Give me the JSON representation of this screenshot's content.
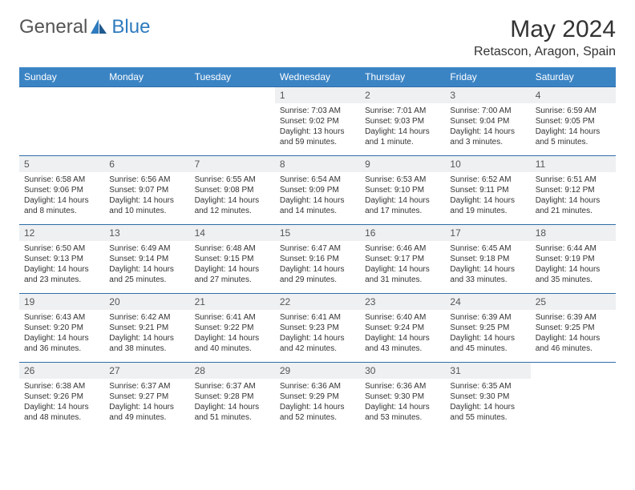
{
  "brand": {
    "part1": "General",
    "part2": "Blue"
  },
  "title": "May 2024",
  "location": "Retascon, Aragon, Spain",
  "colors": {
    "header_bg": "#3b84c4",
    "header_text": "#ffffff",
    "row_border": "#2f6ea8",
    "daynum_bg": "#eef0f2",
    "body_text": "#333333",
    "brand_gray": "#555555",
    "brand_blue": "#2f7bbf"
  },
  "day_headers": [
    "Sunday",
    "Monday",
    "Tuesday",
    "Wednesday",
    "Thursday",
    "Friday",
    "Saturday"
  ],
  "weeks": [
    [
      {
        "n": "",
        "sr": "",
        "ss": "",
        "dl": ""
      },
      {
        "n": "",
        "sr": "",
        "ss": "",
        "dl": ""
      },
      {
        "n": "",
        "sr": "",
        "ss": "",
        "dl": ""
      },
      {
        "n": "1",
        "sr": "Sunrise: 7:03 AM",
        "ss": "Sunset: 9:02 PM",
        "dl": "Daylight: 13 hours and 59 minutes."
      },
      {
        "n": "2",
        "sr": "Sunrise: 7:01 AM",
        "ss": "Sunset: 9:03 PM",
        "dl": "Daylight: 14 hours and 1 minute."
      },
      {
        "n": "3",
        "sr": "Sunrise: 7:00 AM",
        "ss": "Sunset: 9:04 PM",
        "dl": "Daylight: 14 hours and 3 minutes."
      },
      {
        "n": "4",
        "sr": "Sunrise: 6:59 AM",
        "ss": "Sunset: 9:05 PM",
        "dl": "Daylight: 14 hours and 5 minutes."
      }
    ],
    [
      {
        "n": "5",
        "sr": "Sunrise: 6:58 AM",
        "ss": "Sunset: 9:06 PM",
        "dl": "Daylight: 14 hours and 8 minutes."
      },
      {
        "n": "6",
        "sr": "Sunrise: 6:56 AM",
        "ss": "Sunset: 9:07 PM",
        "dl": "Daylight: 14 hours and 10 minutes."
      },
      {
        "n": "7",
        "sr": "Sunrise: 6:55 AM",
        "ss": "Sunset: 9:08 PM",
        "dl": "Daylight: 14 hours and 12 minutes."
      },
      {
        "n": "8",
        "sr": "Sunrise: 6:54 AM",
        "ss": "Sunset: 9:09 PM",
        "dl": "Daylight: 14 hours and 14 minutes."
      },
      {
        "n": "9",
        "sr": "Sunrise: 6:53 AM",
        "ss": "Sunset: 9:10 PM",
        "dl": "Daylight: 14 hours and 17 minutes."
      },
      {
        "n": "10",
        "sr": "Sunrise: 6:52 AM",
        "ss": "Sunset: 9:11 PM",
        "dl": "Daylight: 14 hours and 19 minutes."
      },
      {
        "n": "11",
        "sr": "Sunrise: 6:51 AM",
        "ss": "Sunset: 9:12 PM",
        "dl": "Daylight: 14 hours and 21 minutes."
      }
    ],
    [
      {
        "n": "12",
        "sr": "Sunrise: 6:50 AM",
        "ss": "Sunset: 9:13 PM",
        "dl": "Daylight: 14 hours and 23 minutes."
      },
      {
        "n": "13",
        "sr": "Sunrise: 6:49 AM",
        "ss": "Sunset: 9:14 PM",
        "dl": "Daylight: 14 hours and 25 minutes."
      },
      {
        "n": "14",
        "sr": "Sunrise: 6:48 AM",
        "ss": "Sunset: 9:15 PM",
        "dl": "Daylight: 14 hours and 27 minutes."
      },
      {
        "n": "15",
        "sr": "Sunrise: 6:47 AM",
        "ss": "Sunset: 9:16 PM",
        "dl": "Daylight: 14 hours and 29 minutes."
      },
      {
        "n": "16",
        "sr": "Sunrise: 6:46 AM",
        "ss": "Sunset: 9:17 PM",
        "dl": "Daylight: 14 hours and 31 minutes."
      },
      {
        "n": "17",
        "sr": "Sunrise: 6:45 AM",
        "ss": "Sunset: 9:18 PM",
        "dl": "Daylight: 14 hours and 33 minutes."
      },
      {
        "n": "18",
        "sr": "Sunrise: 6:44 AM",
        "ss": "Sunset: 9:19 PM",
        "dl": "Daylight: 14 hours and 35 minutes."
      }
    ],
    [
      {
        "n": "19",
        "sr": "Sunrise: 6:43 AM",
        "ss": "Sunset: 9:20 PM",
        "dl": "Daylight: 14 hours and 36 minutes."
      },
      {
        "n": "20",
        "sr": "Sunrise: 6:42 AM",
        "ss": "Sunset: 9:21 PM",
        "dl": "Daylight: 14 hours and 38 minutes."
      },
      {
        "n": "21",
        "sr": "Sunrise: 6:41 AM",
        "ss": "Sunset: 9:22 PM",
        "dl": "Daylight: 14 hours and 40 minutes."
      },
      {
        "n": "22",
        "sr": "Sunrise: 6:41 AM",
        "ss": "Sunset: 9:23 PM",
        "dl": "Daylight: 14 hours and 42 minutes."
      },
      {
        "n": "23",
        "sr": "Sunrise: 6:40 AM",
        "ss": "Sunset: 9:24 PM",
        "dl": "Daylight: 14 hours and 43 minutes."
      },
      {
        "n": "24",
        "sr": "Sunrise: 6:39 AM",
        "ss": "Sunset: 9:25 PM",
        "dl": "Daylight: 14 hours and 45 minutes."
      },
      {
        "n": "25",
        "sr": "Sunrise: 6:39 AM",
        "ss": "Sunset: 9:25 PM",
        "dl": "Daylight: 14 hours and 46 minutes."
      }
    ],
    [
      {
        "n": "26",
        "sr": "Sunrise: 6:38 AM",
        "ss": "Sunset: 9:26 PM",
        "dl": "Daylight: 14 hours and 48 minutes."
      },
      {
        "n": "27",
        "sr": "Sunrise: 6:37 AM",
        "ss": "Sunset: 9:27 PM",
        "dl": "Daylight: 14 hours and 49 minutes."
      },
      {
        "n": "28",
        "sr": "Sunrise: 6:37 AM",
        "ss": "Sunset: 9:28 PM",
        "dl": "Daylight: 14 hours and 51 minutes."
      },
      {
        "n": "29",
        "sr": "Sunrise: 6:36 AM",
        "ss": "Sunset: 9:29 PM",
        "dl": "Daylight: 14 hours and 52 minutes."
      },
      {
        "n": "30",
        "sr": "Sunrise: 6:36 AM",
        "ss": "Sunset: 9:30 PM",
        "dl": "Daylight: 14 hours and 53 minutes."
      },
      {
        "n": "31",
        "sr": "Sunrise: 6:35 AM",
        "ss": "Sunset: 9:30 PM",
        "dl": "Daylight: 14 hours and 55 minutes."
      },
      {
        "n": "",
        "sr": "",
        "ss": "",
        "dl": ""
      }
    ]
  ]
}
